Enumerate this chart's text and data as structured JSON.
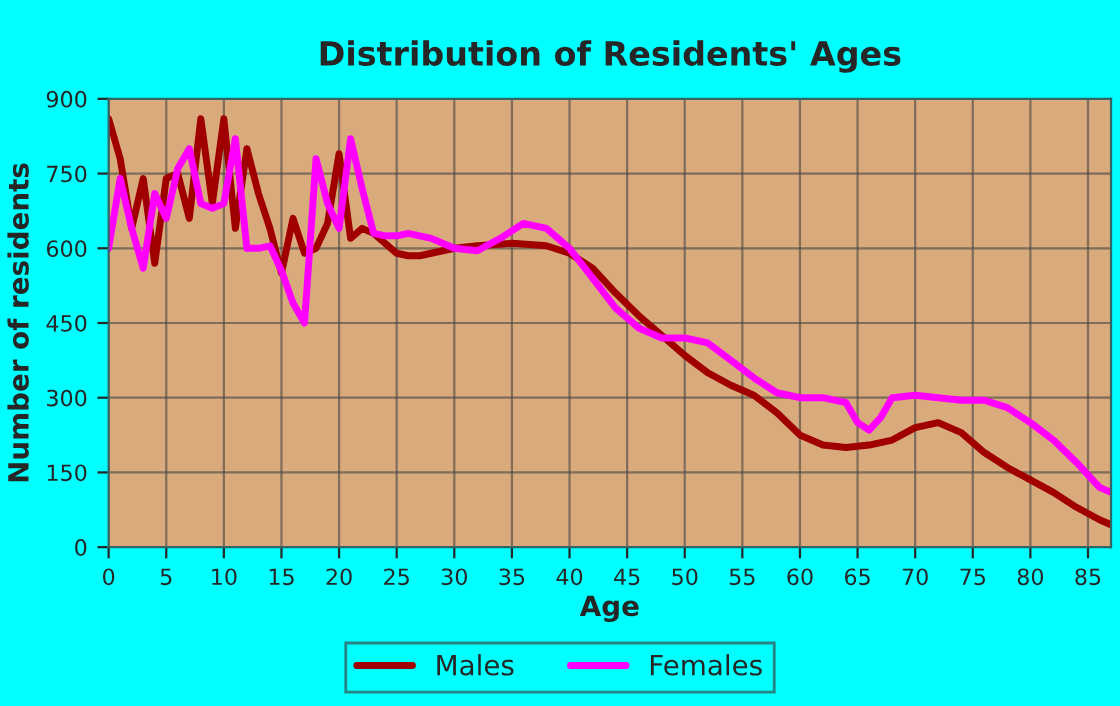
{
  "chart_data": {
    "type": "line",
    "title": "Distribution of Residents' Ages",
    "xlabel": "Age",
    "ylabel": "Number of residents",
    "series": [
      {
        "name": "Males",
        "color": "#a00000",
        "x": [
          0,
          1,
          2,
          3,
          4,
          5,
          6,
          7,
          8,
          9,
          10,
          11,
          12,
          13,
          14,
          15,
          16,
          17,
          18,
          19,
          20,
          21,
          22,
          23,
          24,
          25,
          26,
          27,
          28,
          29,
          30,
          32,
          35,
          38,
          40,
          42,
          44,
          46,
          48,
          50,
          52,
          54,
          56,
          58,
          60,
          62,
          64,
          66,
          68,
          70,
          72,
          74,
          76,
          78,
          80,
          82,
          84,
          86,
          87
        ],
        "values": [
          860,
          780,
          640,
          740,
          570,
          740,
          750,
          660,
          860,
          690,
          860,
          640,
          800,
          710,
          640,
          550,
          660,
          590,
          600,
          650,
          790,
          620,
          640,
          630,
          610,
          590,
          585,
          585,
          590,
          595,
          600,
          605,
          610,
          605,
          590,
          560,
          510,
          465,
          425,
          385,
          350,
          325,
          305,
          270,
          225,
          205,
          200,
          205,
          215,
          240,
          250,
          230,
          190,
          160,
          135,
          110,
          80,
          55,
          45
        ]
      },
      {
        "name": "Females",
        "color": "#ff00ff",
        "x": [
          0,
          1,
          2,
          3,
          4,
          5,
          6,
          7,
          8,
          9,
          10,
          11,
          12,
          13,
          14,
          15,
          16,
          17,
          18,
          19,
          20,
          21,
          22,
          23,
          24,
          25,
          26,
          28,
          30,
          32,
          34,
          36,
          38,
          40,
          42,
          44,
          46,
          48,
          50,
          52,
          54,
          56,
          58,
          60,
          62,
          64,
          65,
          66,
          67,
          68,
          70,
          72,
          74,
          76,
          78,
          80,
          82,
          84,
          86,
          87
        ],
        "values": [
          600,
          740,
          640,
          560,
          710,
          660,
          760,
          800,
          690,
          680,
          690,
          820,
          600,
          600,
          605,
          555,
          490,
          450,
          780,
          690,
          640,
          820,
          720,
          630,
          625,
          625,
          630,
          620,
          600,
          595,
          620,
          650,
          640,
          600,
          540,
          480,
          440,
          420,
          420,
          410,
          375,
          340,
          310,
          300,
          300,
          290,
          250,
          235,
          260,
          300,
          305,
          300,
          295,
          295,
          280,
          250,
          215,
          170,
          120,
          110
        ]
      }
    ],
    "xlim": [
      0,
      87
    ],
    "xticks": [
      0,
      5,
      10,
      15,
      20,
      25,
      30,
      35,
      40,
      45,
      50,
      55,
      60,
      65,
      70,
      75,
      80,
      85
    ],
    "ylim": [
      0,
      900
    ],
    "yticks": [
      0,
      150,
      300,
      450,
      600,
      750,
      900
    ],
    "grid": true,
    "legend": "bottom"
  }
}
